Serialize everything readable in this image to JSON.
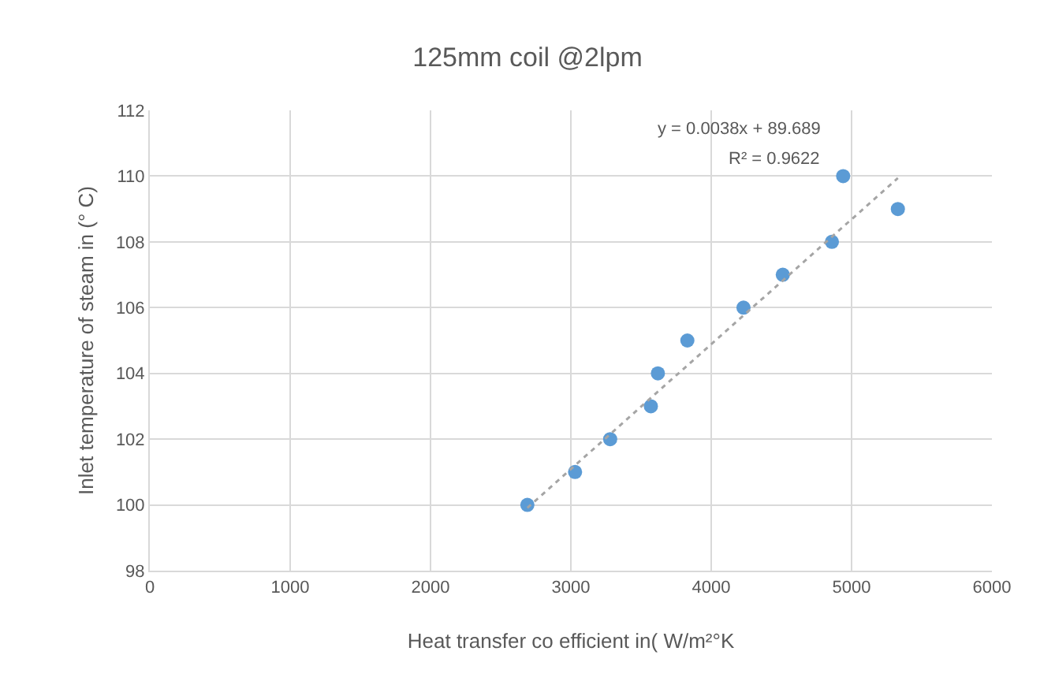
{
  "chart_data": {
    "type": "scatter",
    "title": "125mm coil @2lpm",
    "xlabel": "Heat transfer co efficient in( W/m²°K",
    "ylabel": "Inlet temperature of steam in (° C)",
    "x": [
      2690,
      3030,
      3280,
      3570,
      3620,
      3830,
      4230,
      4510,
      4860,
      4940,
      5330
    ],
    "series": [
      {
        "color": "#5b9bd5",
        "marker": "circle",
        "values": [
          100,
          101,
          102,
          103,
          104,
          105,
          106,
          107,
          108,
          110,
          109
        ]
      },
      {
        "type": "line",
        "color": "#a5a5a5",
        "line_style": "dotted",
        "marker": "none",
        "x": [
          2690,
          5330
        ],
        "values": [
          99.91,
          109.94
        ]
      }
    ],
    "annotations": [
      "y = 0.0038x + 89.689",
      "R² = 0.9622"
    ],
    "xlim": [
      0,
      6000
    ],
    "xticks": [
      0,
      1000,
      2000,
      3000,
      4000,
      5000,
      6000
    ],
    "ylim": [
      98,
      112
    ],
    "yticks": [
      98,
      100,
      102,
      104,
      106,
      108,
      110,
      112
    ],
    "grid": true
  }
}
